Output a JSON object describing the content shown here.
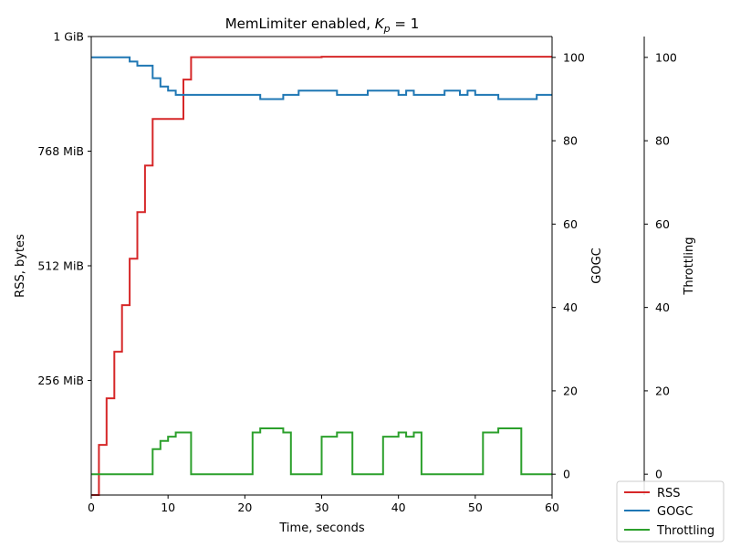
{
  "chart_data": {
    "type": "line",
    "title_main": "MemLimiter enabled, ",
    "title_math": "K",
    "title_sub": "p",
    "title_tail": " = 1",
    "xlabel": "Time, seconds",
    "xlim": [
      0,
      60
    ],
    "x_ticks": [
      "0",
      "10",
      "20",
      "30",
      "40",
      "50",
      "60"
    ],
    "y_axes": {
      "rss": {
        "label": "RSS, bytes",
        "unit": "MiB",
        "ylim": [
          0,
          1024
        ],
        "ticks": [
          {
            "value": 256,
            "label": "256 MiB"
          },
          {
            "value": 512,
            "label": "512 MiB"
          },
          {
            "value": 768,
            "label": "768 MiB"
          },
          {
            "value": 1024,
            "label": "1 GiB"
          }
        ]
      },
      "gogc": {
        "label": "GOGC",
        "ylim": [
          -5,
          105
        ],
        "ticks": [
          "0",
          "20",
          "40",
          "60",
          "80",
          "100"
        ]
      },
      "throttling": {
        "label": "Throttling",
        "ylim": [
          -5,
          105
        ],
        "ticks": [
          "0",
          "20",
          "40",
          "60",
          "80",
          "100"
        ]
      }
    },
    "series": [
      {
        "name": "RSS",
        "axis": "rss",
        "color": "#d62728",
        "step": true,
        "x": [
          0,
          1,
          2,
          3,
          4,
          5,
          6,
          7,
          8,
          12,
          13,
          20,
          30,
          40,
          50,
          60
        ],
        "y": [
          0,
          112,
          216,
          320,
          424,
          528,
          632,
          736,
          840,
          928,
          978,
          978,
          979,
          979,
          979,
          979
        ]
      },
      {
        "name": "GOGC",
        "axis": "gogc",
        "color": "#1f77b4",
        "step": true,
        "x": [
          0,
          5,
          6,
          8,
          9,
          10,
          11,
          22,
          25,
          27,
          32,
          36,
          40,
          41,
          42,
          46,
          48,
          49,
          50,
          53,
          58,
          60
        ],
        "y": [
          100,
          99,
          98,
          95,
          93,
          92,
          91,
          90,
          91,
          92,
          91,
          92,
          91,
          92,
          91,
          92,
          91,
          92,
          91,
          90,
          91,
          91
        ]
      },
      {
        "name": "Throttling",
        "axis": "throttling",
        "color": "#2ca02c",
        "step": true,
        "x": [
          0,
          8,
          9,
          10,
          11,
          13,
          21,
          22,
          25,
          26,
          30,
          32,
          34,
          38,
          40,
          41,
          42,
          43,
          51,
          53,
          56,
          60
        ],
        "y": [
          0,
          6,
          8,
          9,
          10,
          0,
          10,
          11,
          10,
          0,
          9,
          10,
          0,
          9,
          10,
          9,
          10,
          0,
          10,
          11,
          0,
          0
        ]
      }
    ],
    "legend": {
      "placement": "bottom-right",
      "entries": [
        "RSS",
        "GOGC",
        "Throttling"
      ]
    },
    "grid": false
  }
}
